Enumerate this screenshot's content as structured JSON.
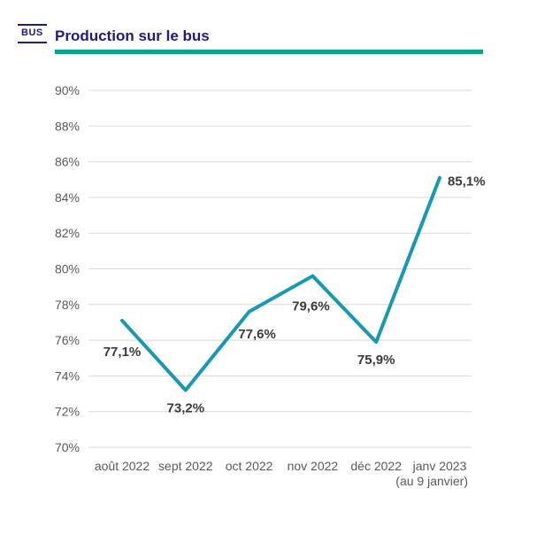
{
  "header": {
    "badge": "BUS",
    "title": "Production sur le bus"
  },
  "chart_data": {
    "type": "line",
    "title": "Production sur le bus",
    "categories": [
      "août 2022",
      "sept 2022",
      "oct 2022",
      "nov 2022",
      "déc 2022",
      "janv 2023"
    ],
    "sublabels": [
      "",
      "",
      "",
      "",
      "",
      "(au 9 janvier)"
    ],
    "values": [
      77.1,
      73.2,
      77.6,
      79.6,
      75.9,
      85.1
    ],
    "data_labels": [
      "77,1%",
      "73,2%",
      "77,6%",
      "79,6%",
      "75,9%",
      "85,1%"
    ],
    "xlabel": "",
    "ylabel": "",
    "ylim": [
      70,
      90
    ],
    "ytick_step": 2,
    "ytick_suffix": "%",
    "grid": "horizontal",
    "legend": "none",
    "colors": {
      "line": "#1798b5",
      "accent_underline": "#0aa38e",
      "header_navy": "#1e1a86",
      "grid": "#d9d9d9",
      "axis_text": "#595959",
      "data_label_text": "#3a3a3a"
    },
    "label_offsets": [
      [
        0,
        35,
        "middle"
      ],
      [
        0,
        20,
        "middle"
      ],
      [
        9,
        25,
        "middle"
      ],
      [
        -2,
        34,
        "middle"
      ],
      [
        0,
        20,
        "middle"
      ],
      [
        9,
        4,
        "start"
      ]
    ]
  }
}
